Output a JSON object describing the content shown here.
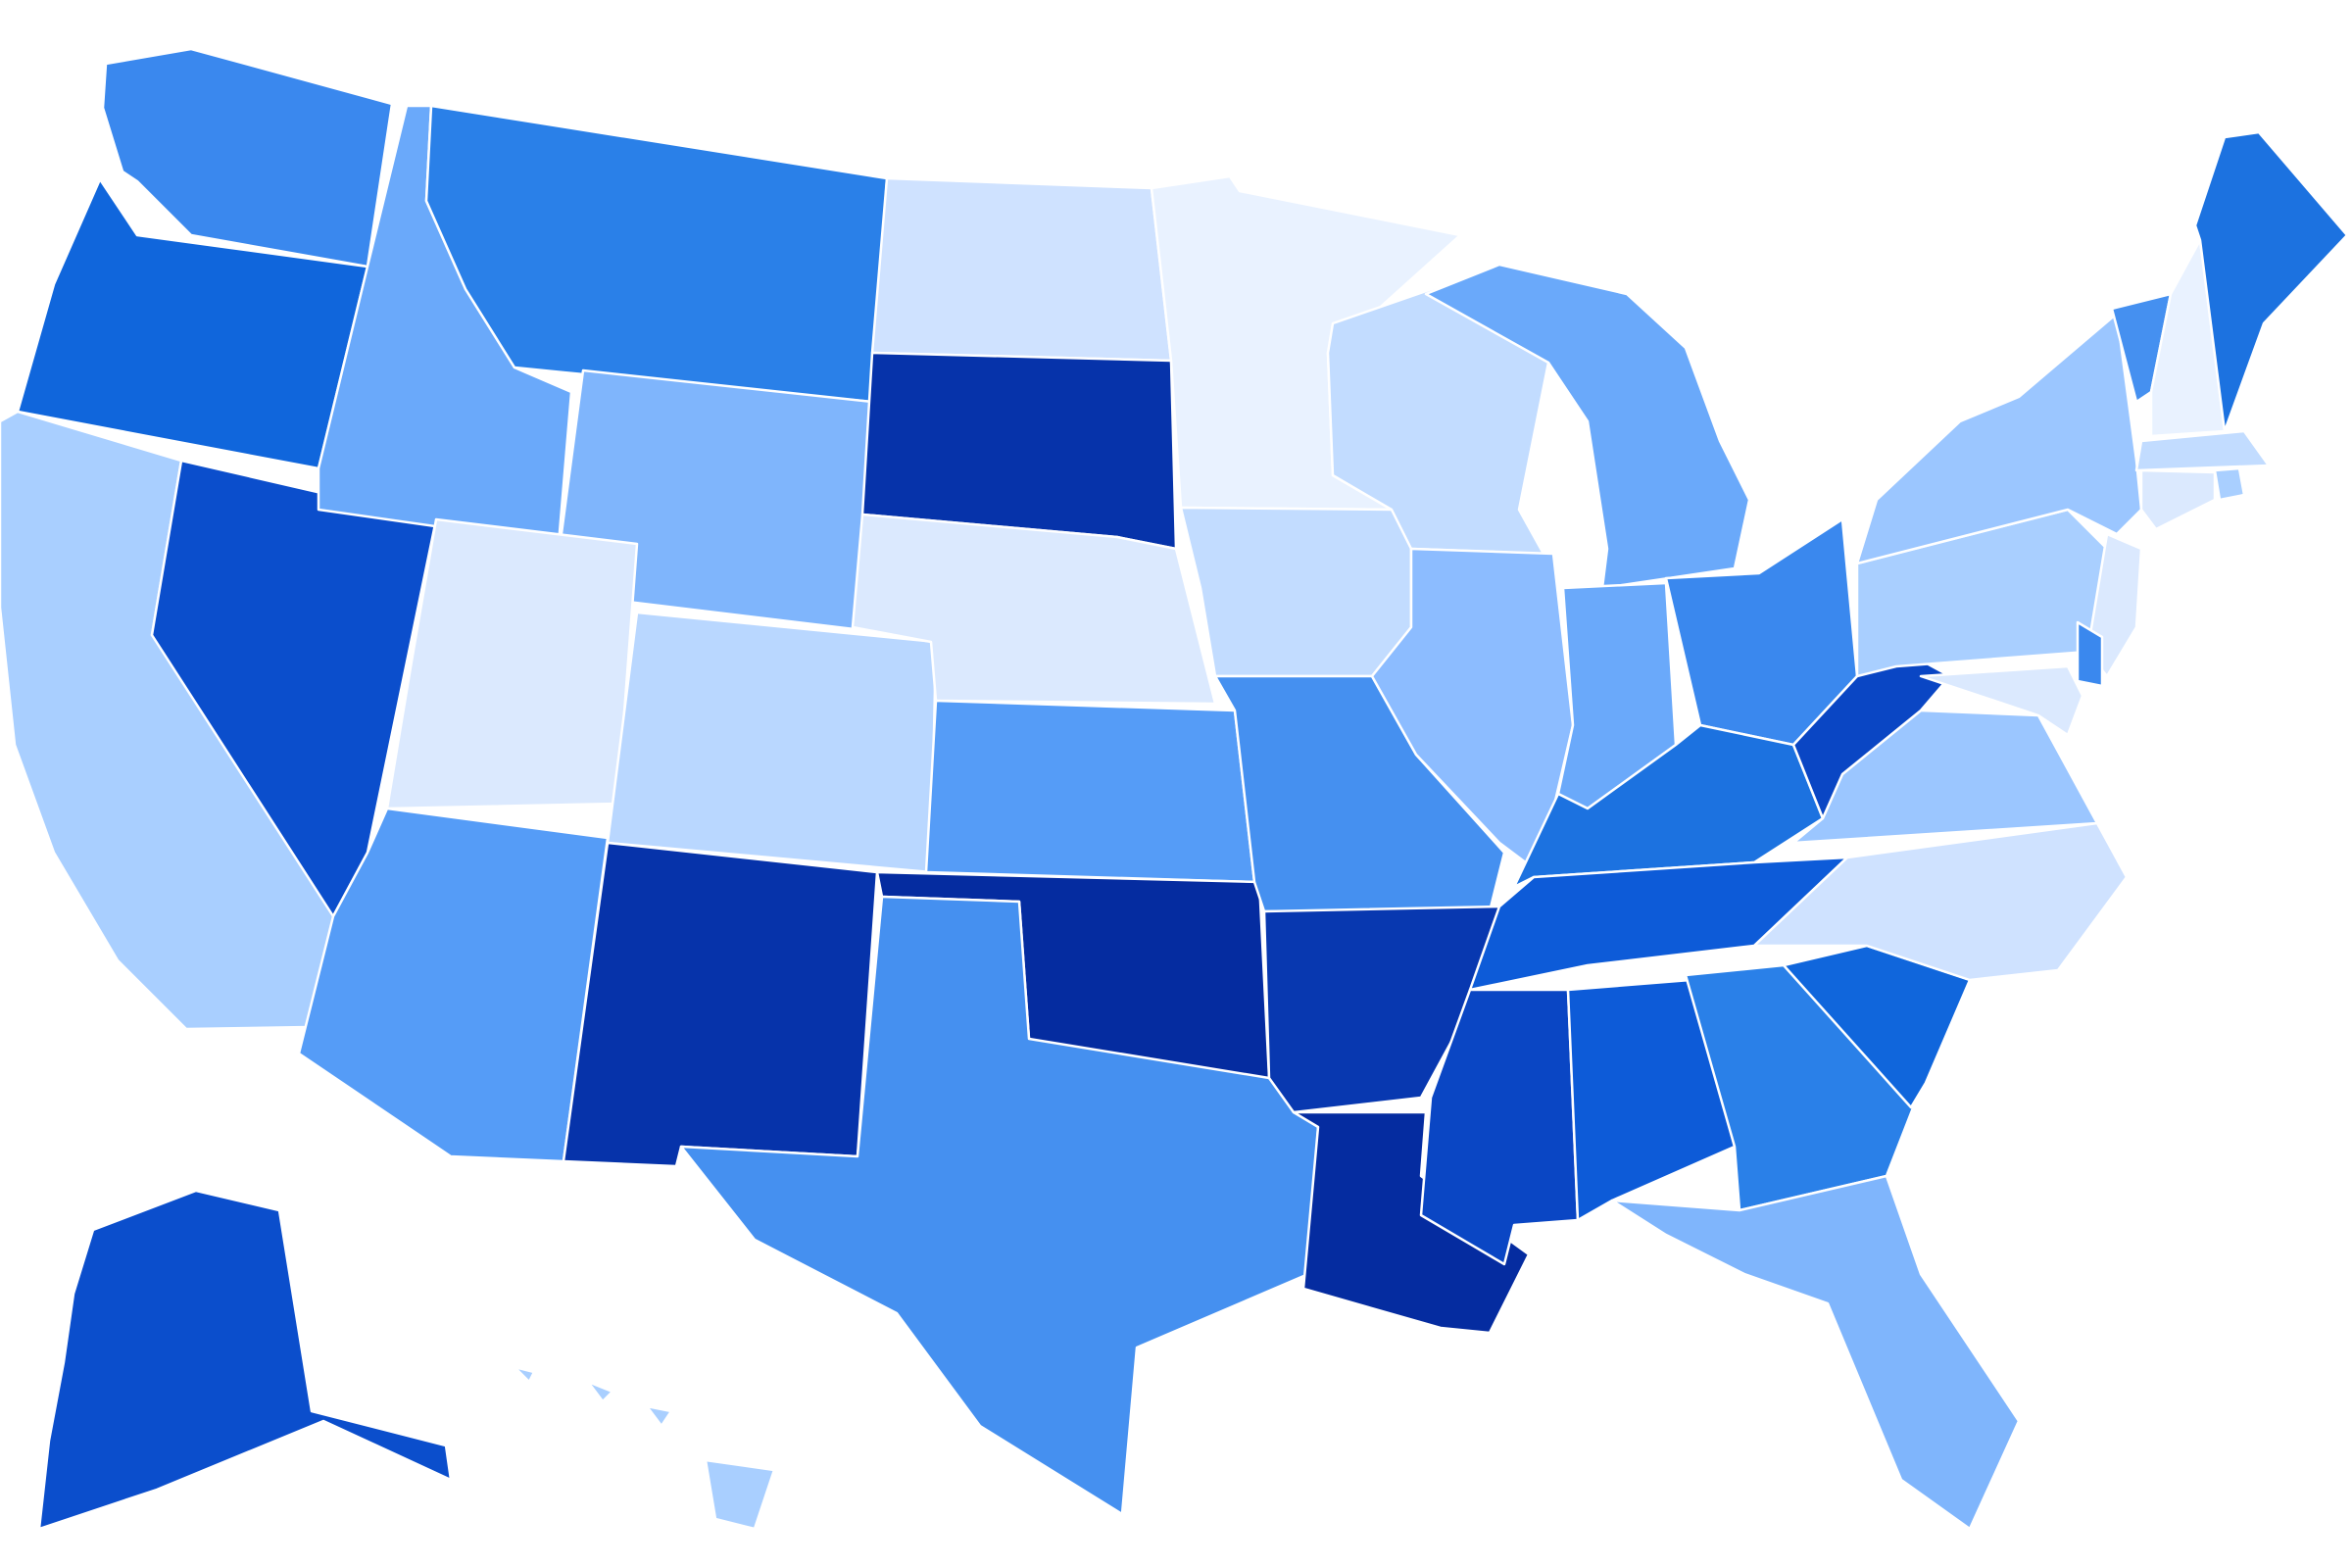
{
  "map": {
    "type": "choropleth",
    "region": "United States",
    "legend": "none",
    "palette": {
      "level_1": "#e9f2ff",
      "level_2": "#dbe9fe",
      "level_3": "#cfe2ff",
      "level_4": "#c2dcff",
      "level_5": "#b9d7ff",
      "level_6": "#a9cfff",
      "level_7": "#9bc6ff",
      "level_8": "#8cbcff",
      "level_9": "#7fb5fc",
      "level_10": "#6aa9fa",
      "level_11": "#559cf7",
      "level_12": "#4590f0",
      "level_13": "#3a88ee",
      "level_14": "#2a80e8",
      "level_15": "#1c72e0",
      "level_16": "#1066dc",
      "level_17": "#0d5bd8",
      "level_18": "#0b4ecc",
      "level_19": "#0a46c4",
      "level_20": "#0838b0",
      "level_21": "#0633aa",
      "level_22": "#052ca0"
    },
    "states": [
      {
        "abbr": "WA",
        "shade": "level_13"
      },
      {
        "abbr": "OR",
        "shade": "level_16"
      },
      {
        "abbr": "CA",
        "shade": "level_6"
      },
      {
        "abbr": "NV",
        "shade": "level_18"
      },
      {
        "abbr": "ID",
        "shade": "level_10"
      },
      {
        "abbr": "MT",
        "shade": "level_14"
      },
      {
        "abbr": "WY",
        "shade": "level_9"
      },
      {
        "abbr": "UT",
        "shade": "level_2"
      },
      {
        "abbr": "AZ",
        "shade": "level_11"
      },
      {
        "abbr": "CO",
        "shade": "level_5"
      },
      {
        "abbr": "NM",
        "shade": "level_21"
      },
      {
        "abbr": "ND",
        "shade": "level_3"
      },
      {
        "abbr": "SD",
        "shade": "level_21"
      },
      {
        "abbr": "NE",
        "shade": "level_2"
      },
      {
        "abbr": "KS",
        "shade": "level_11"
      },
      {
        "abbr": "OK",
        "shade": "level_22"
      },
      {
        "abbr": "TX",
        "shade": "level_12"
      },
      {
        "abbr": "MN",
        "shade": "level_1"
      },
      {
        "abbr": "IA",
        "shade": "level_4"
      },
      {
        "abbr": "MO",
        "shade": "level_12"
      },
      {
        "abbr": "AR",
        "shade": "level_20"
      },
      {
        "abbr": "LA",
        "shade": "level_22"
      },
      {
        "abbr": "WI",
        "shade": "level_4"
      },
      {
        "abbr": "IL",
        "shade": "level_8"
      },
      {
        "abbr": "MI",
        "shade": "level_10"
      },
      {
        "abbr": "IN",
        "shade": "level_10"
      },
      {
        "abbr": "OH",
        "shade": "level_13"
      },
      {
        "abbr": "KY",
        "shade": "level_15"
      },
      {
        "abbr": "TN",
        "shade": "level_17"
      },
      {
        "abbr": "MS",
        "shade": "level_19"
      },
      {
        "abbr": "AL",
        "shade": "level_17"
      },
      {
        "abbr": "GA",
        "shade": "level_14"
      },
      {
        "abbr": "FL",
        "shade": "level_9"
      },
      {
        "abbr": "SC",
        "shade": "level_16"
      },
      {
        "abbr": "NC",
        "shade": "level_3"
      },
      {
        "abbr": "VA",
        "shade": "level_7"
      },
      {
        "abbr": "WV",
        "shade": "level_19"
      },
      {
        "abbr": "PA",
        "shade": "level_6"
      },
      {
        "abbr": "NY",
        "shade": "level_7"
      },
      {
        "abbr": "VT",
        "shade": "level_12"
      },
      {
        "abbr": "NH",
        "shade": "level_1"
      },
      {
        "abbr": "ME",
        "shade": "level_15"
      },
      {
        "abbr": "MA",
        "shade": "level_4"
      },
      {
        "abbr": "RI",
        "shade": "level_6"
      },
      {
        "abbr": "CT",
        "shade": "level_2"
      },
      {
        "abbr": "NJ",
        "shade": "level_2"
      },
      {
        "abbr": "DE",
        "shade": "level_13"
      },
      {
        "abbr": "MD",
        "shade": "level_2"
      },
      {
        "abbr": "AK",
        "shade": "level_18"
      },
      {
        "abbr": "HI",
        "shade": "level_6"
      }
    ]
  }
}
